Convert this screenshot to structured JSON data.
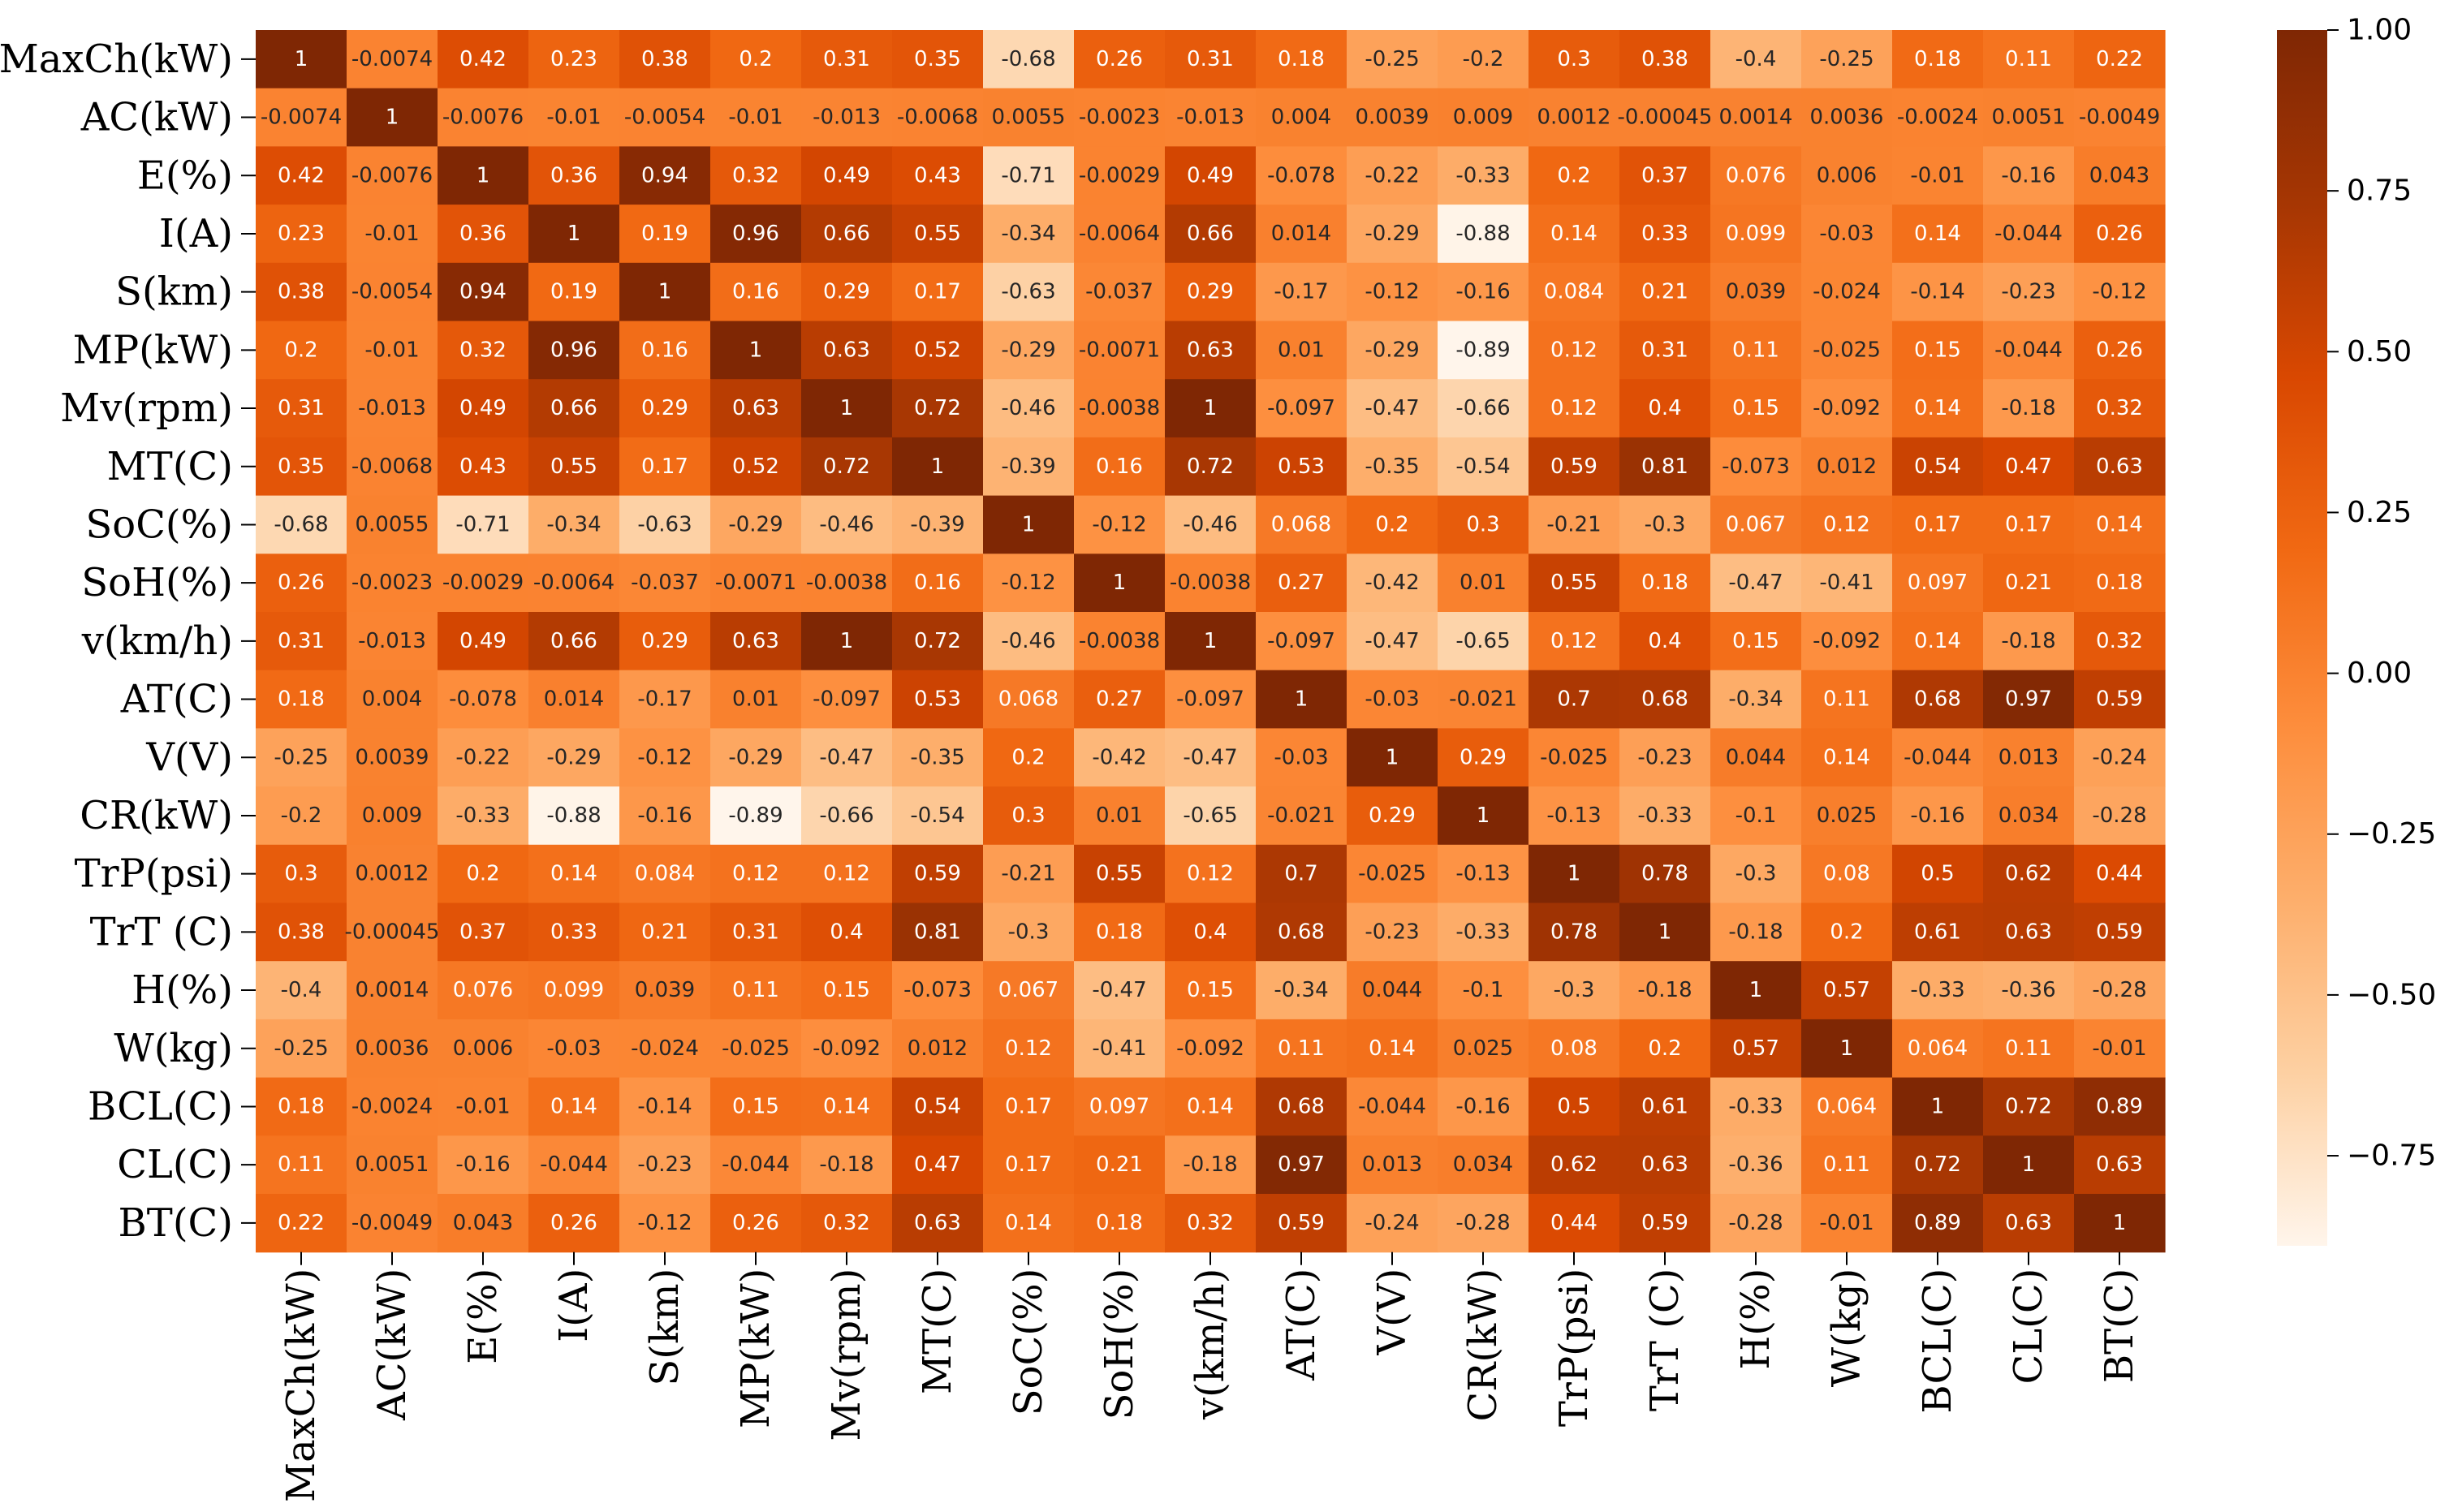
{
  "chart_data": {
    "type": "heatmap",
    "title": "",
    "xlabel": "",
    "ylabel": "",
    "labels": [
      "MaxCh(kW)",
      "AC(kW)",
      "E(%)",
      "I(A)",
      "S(km)",
      "MP(kW)",
      "Mv(rpm)",
      "MT(C)",
      "SoC(%)",
      "SoH(%)",
      "v(km/h)",
      "AT(C)",
      "V(V)",
      "CR(kW)",
      "TrP(psi)",
      "TrT (C)",
      "H(%)",
      "W(kg)",
      "BCL(C)",
      "CL(C)",
      "BT(C)"
    ],
    "matrix": [
      [
        "1",
        "-0.0074",
        "0.42",
        "0.23",
        "0.38",
        "0.2",
        "0.31",
        "0.35",
        "-0.68",
        "0.26",
        "0.31",
        "0.18",
        "-0.25",
        "-0.2",
        "0.3",
        "0.38",
        "-0.4",
        "-0.25",
        "0.18",
        "0.11",
        "0.22"
      ],
      [
        "-0.0074",
        "1",
        "-0.0076",
        "-0.01",
        "-0.0054",
        "-0.01",
        "-0.013",
        "-0.0068",
        "0.0055",
        "-0.0023",
        "-0.013",
        "0.004",
        "0.0039",
        "0.009",
        "0.0012",
        "-0.00045",
        "0.0014",
        "0.0036",
        "-0.0024",
        "0.0051",
        "-0.0049"
      ],
      [
        "0.42",
        "-0.0076",
        "1",
        "0.36",
        "0.94",
        "0.32",
        "0.49",
        "0.43",
        "-0.71",
        "-0.0029",
        "0.49",
        "-0.078",
        "-0.22",
        "-0.33",
        "0.2",
        "0.37",
        "0.076",
        "0.006",
        "-0.01",
        "-0.16",
        "0.043"
      ],
      [
        "0.23",
        "-0.01",
        "0.36",
        "1",
        "0.19",
        "0.96",
        "0.66",
        "0.55",
        "-0.34",
        "-0.0064",
        "0.66",
        "0.014",
        "-0.29",
        "-0.88",
        "0.14",
        "0.33",
        "0.099",
        "-0.03",
        "0.14",
        "-0.044",
        "0.26"
      ],
      [
        "0.38",
        "-0.0054",
        "0.94",
        "0.19",
        "1",
        "0.16",
        "0.29",
        "0.17",
        "-0.63",
        "-0.037",
        "0.29",
        "-0.17",
        "-0.12",
        "-0.16",
        "0.084",
        "0.21",
        "0.039",
        "-0.024",
        "-0.14",
        "-0.23",
        "-0.12"
      ],
      [
        "0.2",
        "-0.01",
        "0.32",
        "0.96",
        "0.16",
        "1",
        "0.63",
        "0.52",
        "-0.29",
        "-0.0071",
        "0.63",
        "0.01",
        "-0.29",
        "-0.89",
        "0.12",
        "0.31",
        "0.11",
        "-0.025",
        "0.15",
        "-0.044",
        "0.26"
      ],
      [
        "0.31",
        "-0.013",
        "0.49",
        "0.66",
        "0.29",
        "0.63",
        "1",
        "0.72",
        "-0.46",
        "-0.0038",
        "1",
        "-0.097",
        "-0.47",
        "-0.66",
        "0.12",
        "0.4",
        "0.15",
        "-0.092",
        "0.14",
        "-0.18",
        "0.32"
      ],
      [
        "0.35",
        "-0.0068",
        "0.43",
        "0.55",
        "0.17",
        "0.52",
        "0.72",
        "1",
        "-0.39",
        "0.16",
        "0.72",
        "0.53",
        "-0.35",
        "-0.54",
        "0.59",
        "0.81",
        "-0.073",
        "0.012",
        "0.54",
        "0.47",
        "0.63"
      ],
      [
        "-0.68",
        "0.0055",
        "-0.71",
        "-0.34",
        "-0.63",
        "-0.29",
        "-0.46",
        "-0.39",
        "1",
        "-0.12",
        "-0.46",
        "0.068",
        "0.2",
        "0.3",
        "-0.21",
        "-0.3",
        "0.067",
        "0.12",
        "0.17",
        "0.17",
        "0.14"
      ],
      [
        "0.26",
        "-0.0023",
        "-0.0029",
        "-0.0064",
        "-0.037",
        "-0.0071",
        "-0.0038",
        "0.16",
        "-0.12",
        "1",
        "-0.0038",
        "0.27",
        "-0.42",
        "0.01",
        "0.55",
        "0.18",
        "-0.47",
        "-0.41",
        "0.097",
        "0.21",
        "0.18"
      ],
      [
        "0.31",
        "-0.013",
        "0.49",
        "0.66",
        "0.29",
        "0.63",
        "1",
        "0.72",
        "-0.46",
        "-0.0038",
        "1",
        "-0.097",
        "-0.47",
        "-0.65",
        "0.12",
        "0.4",
        "0.15",
        "-0.092",
        "0.14",
        "-0.18",
        "0.32"
      ],
      [
        "0.18",
        "0.004",
        "-0.078",
        "0.014",
        "-0.17",
        "0.01",
        "-0.097",
        "0.53",
        "0.068",
        "0.27",
        "-0.097",
        "1",
        "-0.03",
        "-0.021",
        "0.7",
        "0.68",
        "-0.34",
        "0.11",
        "0.68",
        "0.97",
        "0.59"
      ],
      [
        "-0.25",
        "0.0039",
        "-0.22",
        "-0.29",
        "-0.12",
        "-0.29",
        "-0.47",
        "-0.35",
        "0.2",
        "-0.42",
        "-0.47",
        "-0.03",
        "1",
        "0.29",
        "-0.025",
        "-0.23",
        "0.044",
        "0.14",
        "-0.044",
        "0.013",
        "-0.24"
      ],
      [
        "-0.2",
        "0.009",
        "-0.33",
        "-0.88",
        "-0.16",
        "-0.89",
        "-0.66",
        "-0.54",
        "0.3",
        "0.01",
        "-0.65",
        "-0.021",
        "0.29",
        "1",
        "-0.13",
        "-0.33",
        "-0.1",
        "0.025",
        "-0.16",
        "0.034",
        "-0.28"
      ],
      [
        "0.3",
        "0.0012",
        "0.2",
        "0.14",
        "0.084",
        "0.12",
        "0.12",
        "0.59",
        "-0.21",
        "0.55",
        "0.12",
        "0.7",
        "-0.025",
        "-0.13",
        "1",
        "0.78",
        "-0.3",
        "0.08",
        "0.5",
        "0.62",
        "0.44"
      ],
      [
        "0.38",
        "-0.00045",
        "0.37",
        "0.33",
        "0.21",
        "0.31",
        "0.4",
        "0.81",
        "-0.3",
        "0.18",
        "0.4",
        "0.68",
        "-0.23",
        "-0.33",
        "0.78",
        "1",
        "-0.18",
        "0.2",
        "0.61",
        "0.63",
        "0.59"
      ],
      [
        "-0.4",
        "0.0014",
        "0.076",
        "0.099",
        "0.039",
        "0.11",
        "0.15",
        "-0.073",
        "0.067",
        "-0.47",
        "0.15",
        "-0.34",
        "0.044",
        "-0.1",
        "-0.3",
        "-0.18",
        "1",
        "0.57",
        "-0.33",
        "-0.36",
        "-0.28"
      ],
      [
        "-0.25",
        "0.0036",
        "0.006",
        "-0.03",
        "-0.024",
        "-0.025",
        "-0.092",
        "0.012",
        "0.12",
        "-0.41",
        "-0.092",
        "0.11",
        "0.14",
        "0.025",
        "0.08",
        "0.2",
        "0.57",
        "1",
        "0.064",
        "0.11",
        "-0.01"
      ],
      [
        "0.18",
        "-0.0024",
        "-0.01",
        "0.14",
        "-0.14",
        "0.15",
        "0.14",
        "0.54",
        "0.17",
        "0.097",
        "0.14",
        "0.68",
        "-0.044",
        "-0.16",
        "0.5",
        "0.61",
        "-0.33",
        "0.064",
        "1",
        "0.72",
        "0.89"
      ],
      [
        "0.11",
        "0.0051",
        "-0.16",
        "-0.044",
        "-0.23",
        "-0.044",
        "-0.18",
        "0.47",
        "0.17",
        "0.21",
        "-0.18",
        "0.97",
        "0.013",
        "0.034",
        "0.62",
        "0.63",
        "-0.36",
        "0.11",
        "0.72",
        "1",
        "0.63"
      ],
      [
        "0.22",
        "-0.0049",
        "0.043",
        "0.26",
        "-0.12",
        "0.26",
        "0.32",
        "0.63",
        "0.14",
        "0.18",
        "0.32",
        "0.59",
        "-0.24",
        "-0.28",
        "0.44",
        "0.59",
        "-0.28",
        "-0.01",
        "0.89",
        "0.63",
        "1"
      ]
    ],
    "value_range": [
      -0.89,
      1.0
    ],
    "colorbar": {
      "ticks": [
        "1.00",
        "0.75",
        "0.50",
        "0.25",
        "0.00",
        "−0.25",
        "−0.50",
        "−0.75"
      ],
      "tick_values": [
        1.0,
        0.75,
        0.5,
        0.25,
        0.0,
        -0.25,
        -0.5,
        -0.75
      ],
      "placement": "right"
    },
    "colormap": "OrRd",
    "colormap_stops": [
      "#fff5eb",
      "#fdd0a2",
      "#fdae6b",
      "#fd8d3c",
      "#f16913",
      "#d94801",
      "#a63603",
      "#7f2704"
    ],
    "grid": false
  }
}
